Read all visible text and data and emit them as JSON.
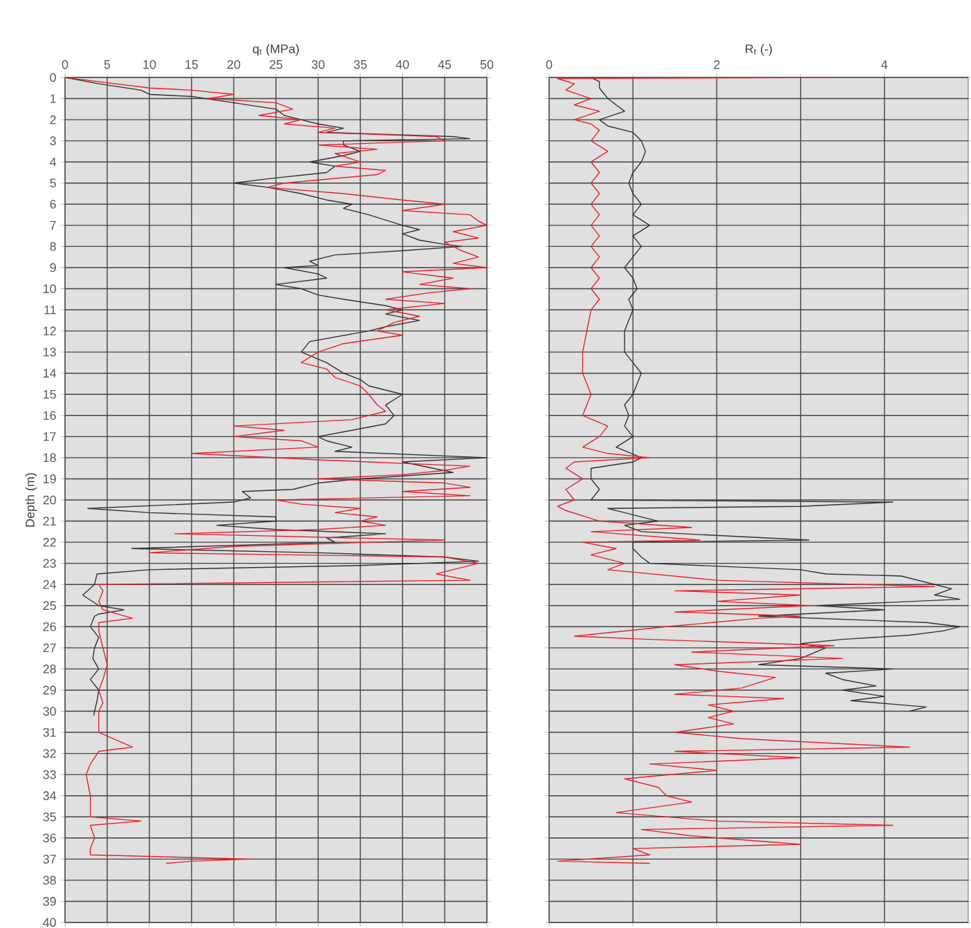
{
  "chart_data": [
    {
      "type": "line",
      "xlabel": "q$_{t}$ (MPa)",
      "ylabel": "Depth (m)",
      "xlim": [
        0,
        50
      ],
      "ylim": [
        40,
        0
      ],
      "xticks": [
        0,
        5,
        10,
        15,
        20,
        25,
        30,
        35,
        40,
        45,
        50
      ],
      "yticks": [
        0,
        1,
        2,
        3,
        4,
        5,
        6,
        7,
        8,
        9,
        10,
        11,
        12,
        13,
        14,
        15,
        16,
        17,
        18,
        19,
        20,
        21,
        22,
        23,
        24,
        25,
        26,
        27,
        28,
        29,
        30,
        31,
        32,
        33,
        34,
        35,
        36,
        37,
        38,
        39,
        40
      ],
      "grid": true,
      "series": [
        {
          "color": "#303030",
          "x": [
            0,
            4,
            9,
            10,
            15,
            20,
            25,
            26,
            28,
            30,
            33,
            31,
            46,
            48,
            33,
            33,
            35,
            33,
            29,
            32,
            31,
            24,
            20,
            24,
            28,
            31,
            34,
            33,
            36,
            40,
            42,
            40,
            42,
            45,
            47,
            40,
            32,
            29,
            30,
            26,
            30,
            31,
            25,
            28,
            30,
            33,
            38,
            40,
            38,
            42,
            38,
            36,
            29,
            28,
            31,
            33,
            35,
            36,
            40,
            38,
            39,
            38,
            34,
            30,
            31,
            34,
            32,
            50,
            40,
            46,
            35,
            30,
            27,
            21,
            22,
            20,
            2.7,
            10,
            25,
            25,
            18,
            25,
            38,
            31,
            32,
            7.9,
            30,
            45,
            49,
            35,
            10,
            3.8,
            3.5,
            2.1,
            4,
            7,
            4,
            3.5,
            3,
            4,
            3.5,
            3.3,
            4,
            3,
            4,
            3.8,
            3.5,
            3.4
          ],
          "values": [
            0,
            0.3,
            0.6,
            0.8,
            0.9,
            1.2,
            1.5,
            1.8,
            2.0,
            2.2,
            2.4,
            2.6,
            2.8,
            2.9,
            3.0,
            3.2,
            3.5,
            3.7,
            4.0,
            4.2,
            4.5,
            4.8,
            5.0,
            5.2,
            5.5,
            5.8,
            6.0,
            6.2,
            6.5,
            7.0,
            7.2,
            7.4,
            7.7,
            7.9,
            8.0,
            8.2,
            8.4,
            8.7,
            8.9,
            9.0,
            9.3,
            9.5,
            9.8,
            10.0,
            10.3,
            10.5,
            10.8,
            11.0,
            11.2,
            11.5,
            11.8,
            12.0,
            12.5,
            13.0,
            13.5,
            14.0,
            14.3,
            14.6,
            15.0,
            15.5,
            16.0,
            16.4,
            16.7,
            17.0,
            17.2,
            17.5,
            17.7,
            18.0,
            18.2,
            18.7,
            19.0,
            19.2,
            19.5,
            19.6,
            19.9,
            20.1,
            20.4,
            20.6,
            20.8,
            21.0,
            21.2,
            21.4,
            21.6,
            21.8,
            22.0,
            22.3,
            22.5,
            22.7,
            22.9,
            23.1,
            23.3,
            23.5,
            24.0,
            24.5,
            25.0,
            25.2,
            25.4,
            25.5,
            26.0,
            26.5,
            27.0,
            27.5,
            28.0,
            28.5,
            29.0,
            29.5,
            30.0,
            30.2
          ]
        },
        {
          "color": "#e8202a",
          "x": [
            0,
            4,
            10,
            15,
            20,
            17,
            25,
            27,
            23,
            28,
            26,
            32,
            30,
            44,
            45,
            30,
            37,
            32,
            35,
            32,
            38,
            37,
            26,
            24,
            33,
            40,
            45,
            40,
            48,
            49,
            50,
            46,
            49,
            45,
            47,
            49,
            46,
            50,
            40,
            46,
            42,
            48,
            43,
            38,
            45,
            38,
            42,
            39,
            37,
            40,
            33,
            30,
            28,
            31,
            32,
            35,
            36,
            37,
            38,
            34,
            20,
            26,
            20,
            28,
            30,
            15,
            30,
            48,
            45,
            40,
            30,
            45,
            48,
            40,
            48,
            25,
            28,
            35,
            32,
            37,
            35,
            38,
            30,
            13,
            45,
            20,
            10,
            45,
            49,
            44,
            48,
            4,
            4.5,
            4,
            4.5,
            8,
            4,
            4,
            4.5,
            5,
            4.5,
            4,
            4.5,
            4,
            4,
            8,
            4,
            3,
            2.5,
            3,
            3,
            9,
            3,
            3.5,
            3,
            3,
            22,
            15,
            12
          ],
          "values": [
            0,
            0.2,
            0.5,
            0.6,
            0.8,
            1.0,
            1.2,
            1.5,
            1.8,
            2.0,
            2.2,
            2.4,
            2.6,
            2.8,
            3.0,
            3.2,
            3.4,
            3.6,
            4.0,
            4.2,
            4.4,
            4.6,
            5.0,
            5.2,
            5.5,
            5.8,
            6.0,
            6.3,
            6.5,
            6.8,
            7.0,
            7.3,
            7.6,
            7.8,
            8.2,
            8.5,
            8.8,
            9.0,
            9.2,
            9.5,
            9.8,
            10.0,
            10.2,
            10.5,
            10.7,
            11.0,
            11.3,
            11.6,
            12.0,
            12.2,
            12.6,
            13.0,
            13.5,
            13.8,
            14.2,
            14.6,
            15.0,
            15.5,
            15.8,
            16.2,
            16.5,
            16.7,
            17.0,
            17.2,
            17.5,
            17.8,
            18.1,
            18.4,
            18.6,
            18.8,
            19.0,
            19.2,
            19.4,
            19.6,
            19.8,
            20.0,
            20.2,
            20.4,
            20.6,
            20.8,
            21.0,
            21.2,
            21.4,
            21.6,
            21.9,
            22.2,
            22.5,
            22.7,
            23.0,
            23.5,
            23.8,
            24.0,
            24.3,
            24.8,
            25.2,
            25.6,
            25.8,
            26.2,
            27.0,
            27.8,
            28.5,
            29.0,
            29.6,
            30.0,
            31.0,
            31.7,
            31.9,
            32.5,
            33.0,
            34.0,
            35.0,
            35.2,
            35.4,
            36.0,
            36.5,
            36.8,
            37.0,
            37.1,
            37.2
          ]
        }
      ]
    },
    {
      "type": "line",
      "xlabel": "R$_{f}$ (-)",
      "xlim": [
        0,
        5
      ],
      "ylim": [
        40,
        0
      ],
      "xticks": [
        0,
        {
          "value": 1,
          "label": null
        },
        2,
        {
          "value": 3,
          "label": null
        },
        4
      ],
      "yticks": [
        0,
        1,
        2,
        3,
        4,
        5,
        6,
        7,
        8,
        9,
        10,
        11,
        12,
        13,
        14,
        15,
        16,
        17,
        18,
        19,
        20,
        21,
        22,
        23,
        24,
        25,
        26,
        27,
        28,
        29,
        30,
        31,
        32,
        33,
        34,
        35,
        36,
        37,
        38,
        39,
        40
      ],
      "grid": true,
      "tick_labels": "x",
      "series": [
        {
          "color": "#303030",
          "x": [
            0.5,
            0.6,
            0.6,
            0.7,
            0.8,
            0.9,
            0.6,
            0.7,
            1.0,
            1.1,
            1.15,
            1.1,
            1.0,
            0.95,
            1.0,
            1.1,
            1.0,
            1.2,
            1.0,
            1.1,
            1.0,
            0.9,
            1.0,
            1.05,
            0.95,
            1.0,
            0.9,
            0.9,
            1.0,
            1.1,
            1.05,
            1.0,
            0.9,
            0.95,
            0.9,
            1.0,
            0.8,
            1.1,
            1.0,
            0.5,
            0.5,
            0.6,
            0.5,
            4.1,
            3.0,
            0.7,
            0.9,
            1.3,
            0.9,
            1.1,
            3.1,
            1.0,
            1.0,
            1.1,
            1.2,
            3.0,
            3.3,
            4.2,
            4.6,
            4.8,
            4.6,
            4.9,
            3.2,
            4.0,
            2.5,
            4.5,
            4.9,
            4.7,
            4.3,
            3.5,
            3.0,
            3.3,
            3.0,
            2.5,
            4.1,
            3.3,
            3.5,
            3.9,
            3.5,
            4.0,
            3.6,
            4.5,
            4.3
          ],
          "values": [
            0,
            0.2,
            0.5,
            1.0,
            1.3,
            1.6,
            2.0,
            2.3,
            2.6,
            3.0,
            3.5,
            4.0,
            4.5,
            5.0,
            5.5,
            6.0,
            6.5,
            7.0,
            7.5,
            8.0,
            8.5,
            9.0,
            9.5,
            10.0,
            10.5,
            11.0,
            12.0,
            13.0,
            13.5,
            14.0,
            14.5,
            15.0,
            15.5,
            16.0,
            16.5,
            17.0,
            17.5,
            18.0,
            18.2,
            18.5,
            19.0,
            19.5,
            20.0,
            20.1,
            20.3,
            20.4,
            20.6,
            21.0,
            21.2,
            21.5,
            21.9,
            22.0,
            22.3,
            22.7,
            23.0,
            23.3,
            23.5,
            23.6,
            24.0,
            24.2,
            24.5,
            24.7,
            25.0,
            25.2,
            25.5,
            25.8,
            26.0,
            26.2,
            26.4,
            26.6,
            26.8,
            27.0,
            27.5,
            27.8,
            28.0,
            28.2,
            28.5,
            28.8,
            29.0,
            29.3,
            29.5,
            29.8,
            30.0
          ]
        },
        {
          "color": "#e8202a",
          "x": [
            3.4,
            0.1,
            0.3,
            0.2,
            0.5,
            0.3,
            0.6,
            0.3,
            0.5,
            0.6,
            0.5,
            0.7,
            0.5,
            0.6,
            0.5,
            0.6,
            0.5,
            0.6,
            0.5,
            0.6,
            0.5,
            0.6,
            0.5,
            0.6,
            0.5,
            0.6,
            0.5,
            0.45,
            0.4,
            0.4,
            0.5,
            0.4,
            0.7,
            0.6,
            0.4,
            0.7,
            1.2,
            0.3,
            0.2,
            0.4,
            0.2,
            0.3,
            0.1,
            0.2,
            0.6,
            1.7,
            0.5,
            1.8,
            0.4,
            0.8,
            0.5,
            0.9,
            0.7,
            2.0,
            4.6,
            1.5,
            3.0,
            2.0,
            3.1,
            1.5,
            3.0,
            2.5,
            1.4,
            0.3,
            1.2,
            3.4,
            1.7,
            3.5,
            1.5,
            2.0,
            2.7,
            2.3,
            1.5,
            2.8,
            1.9,
            2.2,
            1.9,
            2.2,
            1.5,
            2.3,
            4.3,
            1.5,
            3.0,
            1.2,
            2.0,
            0.9,
            1.3,
            1.4,
            1.7,
            0.8,
            2.0,
            4.1,
            1.1,
            1.7,
            3.0,
            1.0,
            1.2,
            0.1,
            1.2
          ],
          "values": [
            0,
            0.05,
            0.3,
            0.6,
            1.0,
            1.3,
            1.6,
            2.0,
            2.2,
            2.5,
            3.0,
            3.5,
            4.0,
            4.5,
            5.0,
            5.5,
            6.0,
            6.5,
            7.0,
            7.5,
            8.0,
            8.5,
            9.0,
            9.5,
            10.0,
            10.5,
            11.0,
            12.0,
            13.0,
            14.0,
            15.0,
            16.0,
            16.5,
            17.0,
            17.5,
            17.8,
            18.0,
            18.2,
            18.5,
            19.0,
            19.5,
            20.0,
            20.3,
            20.5,
            21.0,
            21.3,
            21.5,
            21.9,
            22.0,
            22.3,
            22.6,
            23.0,
            23.3,
            23.8,
            24.1,
            24.3,
            24.5,
            24.8,
            25.0,
            25.3,
            25.5,
            25.6,
            26.0,
            26.45,
            26.6,
            26.9,
            27.2,
            27.5,
            27.8,
            28.1,
            28.4,
            28.9,
            29.2,
            29.4,
            29.7,
            30.0,
            30.3,
            30.6,
            31.0,
            31.3,
            31.7,
            31.9,
            32.2,
            32.5,
            32.8,
            33.2,
            33.6,
            34.0,
            34.3,
            34.8,
            35.2,
            35.4,
            35.6,
            35.9,
            36.3,
            36.5,
            36.8,
            37.1,
            37.2
          ]
        }
      ]
    }
  ]
}
